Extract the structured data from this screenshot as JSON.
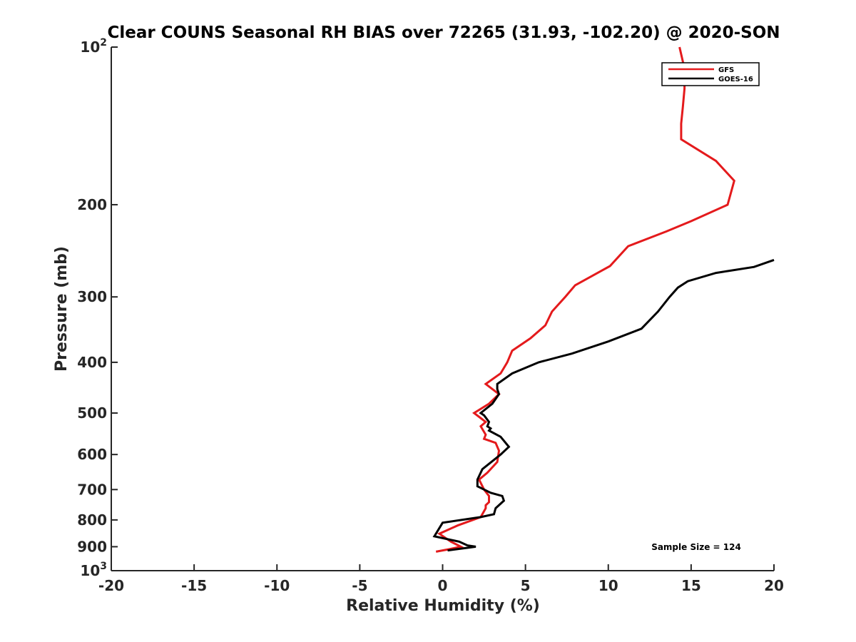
{
  "chart_data": {
    "type": "line",
    "title": "Clear COUNS Seasonal RH BIAS over 72265 (31.93, -102.20) @ 2020-SON",
    "xlabel": "Relative Humidity (%)",
    "ylabel": "Pressure (mb)",
    "xlim": [
      -20,
      20
    ],
    "ylim": [
      100,
      1000
    ],
    "yscale": "log",
    "yreverse": true,
    "xticks": [
      -20,
      -15,
      -10,
      -5,
      0,
      5,
      10,
      15,
      20
    ],
    "xtick_labels": [
      "-20",
      "-15",
      "-10",
      "-5",
      "0",
      "5",
      "10",
      "15",
      "20"
    ],
    "yticks": [
      100,
      200,
      300,
      400,
      500,
      600,
      700,
      800,
      900,
      1000
    ],
    "ytick_labels": [
      {
        "base": "10",
        "exp": "2"
      },
      {
        "base": "200",
        "exp": ""
      },
      {
        "base": "300",
        "exp": ""
      },
      {
        "base": "400",
        "exp": ""
      },
      {
        "base": "500",
        "exp": ""
      },
      {
        "base": "600",
        "exp": ""
      },
      {
        "base": "700",
        "exp": ""
      },
      {
        "base": "800",
        "exp": ""
      },
      {
        "base": "900",
        "exp": ""
      },
      {
        "base": "10",
        "exp": "3"
      }
    ],
    "legend_position": "top-right",
    "annotation": "Sample Size = 124",
    "series": [
      {
        "name": "GFS",
        "color": "#e41a1c",
        "points": [
          [
            14.3,
            100
          ],
          [
            14.6,
            110
          ],
          [
            14.6,
            120
          ],
          [
            14.5,
            130
          ],
          [
            14.4,
            140
          ],
          [
            14.4,
            150
          ],
          [
            16.5,
            165
          ],
          [
            17.6,
            180
          ],
          [
            17.2,
            200
          ],
          [
            15.0,
            215
          ],
          [
            13.5,
            225
          ],
          [
            11.2,
            240
          ],
          [
            10.1,
            262
          ],
          [
            8.0,
            285
          ],
          [
            7.4,
            300
          ],
          [
            6.6,
            320
          ],
          [
            6.2,
            340
          ],
          [
            5.3,
            360
          ],
          [
            4.2,
            380
          ],
          [
            3.9,
            400
          ],
          [
            3.5,
            420
          ],
          [
            2.6,
            440
          ],
          [
            3.4,
            460
          ],
          [
            2.8,
            480
          ],
          [
            1.9,
            500
          ],
          [
            2.6,
            520
          ],
          [
            2.3,
            530
          ],
          [
            2.6,
            550
          ],
          [
            2.5,
            560
          ],
          [
            3.2,
            570
          ],
          [
            3.4,
            590
          ],
          [
            3.3,
            620
          ],
          [
            2.7,
            650
          ],
          [
            2.2,
            670
          ],
          [
            2.5,
            700
          ],
          [
            2.8,
            720
          ],
          [
            2.8,
            740
          ],
          [
            2.6,
            750
          ],
          [
            2.6,
            760
          ],
          [
            2.3,
            790
          ],
          [
            0.9,
            820
          ],
          [
            -0.2,
            850
          ],
          [
            0.5,
            880
          ],
          [
            1.1,
            900
          ],
          [
            0.4,
            910
          ],
          [
            -0.4,
            920
          ]
        ]
      },
      {
        "name": "GOES-16",
        "color": "#000000",
        "points": [
          [
            20.0,
            255
          ],
          [
            18.8,
            263
          ],
          [
            16.5,
            270
          ],
          [
            14.8,
            280
          ],
          [
            14.2,
            288
          ],
          [
            13.7,
            300
          ],
          [
            13.0,
            320
          ],
          [
            12.0,
            345
          ],
          [
            10.0,
            365
          ],
          [
            7.8,
            385
          ],
          [
            5.8,
            400
          ],
          [
            4.2,
            420
          ],
          [
            3.3,
            440
          ],
          [
            3.3,
            450
          ],
          [
            3.4,
            460
          ],
          [
            3.0,
            480
          ],
          [
            2.3,
            500
          ],
          [
            2.5,
            505
          ],
          [
            2.8,
            520
          ],
          [
            2.7,
            530
          ],
          [
            2.9,
            535
          ],
          [
            2.8,
            540
          ],
          [
            3.5,
            555
          ],
          [
            4.0,
            580
          ],
          [
            3.5,
            600
          ],
          [
            2.4,
            640
          ],
          [
            2.1,
            670
          ],
          [
            2.1,
            690
          ],
          [
            2.9,
            710
          ],
          [
            3.6,
            720
          ],
          [
            3.7,
            735
          ],
          [
            3.2,
            760
          ],
          [
            3.1,
            780
          ],
          [
            2.3,
            790
          ],
          [
            0.0,
            810
          ],
          [
            -0.5,
            860
          ],
          [
            1.0,
            880
          ],
          [
            1.5,
            895
          ],
          [
            2.0,
            900
          ],
          [
            1.4,
            905
          ],
          [
            0.3,
            915
          ]
        ]
      }
    ]
  }
}
